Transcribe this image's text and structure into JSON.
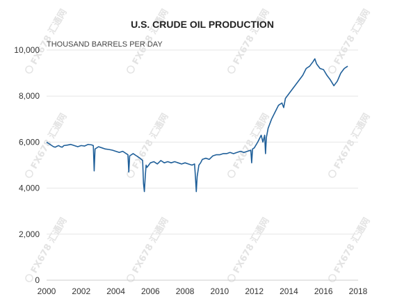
{
  "watermark": {
    "text": "FX678 汇通网"
  },
  "chart_data": {
    "type": "line",
    "title": "U.S. CRUDE OIL PRODUCTION",
    "ylabel": "THOUSAND BARRELS PER DAY",
    "xlabel": "",
    "xlim": [
      2000,
      2018
    ],
    "ylim": [
      0,
      10000
    ],
    "x_ticks": [
      2000,
      2002,
      2004,
      2006,
      2008,
      2010,
      2012,
      2014,
      2016,
      2018
    ],
    "x_tick_labels": [
      "2000",
      "2002",
      "2004",
      "2006",
      "2008",
      "2010",
      "2012",
      "2014",
      "2016",
      "2018"
    ],
    "y_ticks": [
      0,
      2000,
      4000,
      6000,
      8000,
      10000
    ],
    "y_tick_labels": [
      "0",
      "2,000",
      "4,000",
      "6,000",
      "8,000",
      "10,000"
    ],
    "grid": true,
    "legend": "none",
    "series": [
      {
        "color": "#1f5f99",
        "x": [
          2000.0,
          2000.1,
          2000.2,
          2000.3,
          2000.4,
          2000.5,
          2000.6,
          2000.7,
          2000.8,
          2000.9,
          2001.0,
          2001.2,
          2001.4,
          2001.6,
          2001.8,
          2002.0,
          2002.2,
          2002.4,
          2002.6,
          2002.7,
          2002.75,
          2002.8,
          2003.0,
          2003.2,
          2003.4,
          2003.6,
          2003.8,
          2004.0,
          2004.2,
          2004.4,
          2004.6,
          2004.7,
          2004.75,
          2004.8,
          2005.0,
          2005.2,
          2005.4,
          2005.55,
          2005.6,
          2005.65,
          2005.7,
          2005.75,
          2005.8,
          2005.9,
          2006.0,
          2006.2,
          2006.4,
          2006.6,
          2006.8,
          2007.0,
          2007.2,
          2007.4,
          2007.6,
          2007.8,
          2008.0,
          2008.2,
          2008.4,
          2008.55,
          2008.6,
          2008.65,
          2008.7,
          2008.8,
          2008.9,
          2009.0,
          2009.2,
          2009.4,
          2009.6,
          2009.8,
          2010.0,
          2010.2,
          2010.4,
          2010.6,
          2010.8,
          2011.0,
          2011.2,
          2011.4,
          2011.6,
          2011.8,
          2011.85,
          2011.9,
          2012.0,
          2012.2,
          2012.4,
          2012.5,
          2012.6,
          2012.65,
          2012.7,
          2012.8,
          2013.0,
          2013.2,
          2013.4,
          2013.6,
          2013.7,
          2013.8,
          2014.0,
          2014.2,
          2014.4,
          2014.6,
          2014.8,
          2015.0,
          2015.2,
          2015.4,
          2015.5,
          2015.6,
          2015.8,
          2016.0,
          2016.2,
          2016.4,
          2016.6,
          2016.8,
          2017.0,
          2017.2,
          2017.4
        ],
        "y": [
          6000,
          5950,
          5900,
          5850,
          5800,
          5780,
          5820,
          5850,
          5800,
          5780,
          5850,
          5870,
          5900,
          5850,
          5800,
          5850,
          5830,
          5900,
          5880,
          5850,
          4750,
          5700,
          5800,
          5750,
          5700,
          5680,
          5650,
          5600,
          5550,
          5600,
          5500,
          5450,
          4700,
          5400,
          5500,
          5400,
          5300,
          5200,
          4200,
          3850,
          4500,
          5000,
          4900,
          5000,
          5100,
          5150,
          5050,
          5200,
          5100,
          5150,
          5100,
          5150,
          5100,
          5050,
          5100,
          5050,
          5000,
          5050,
          4500,
          3850,
          4500,
          5000,
          5100,
          5250,
          5300,
          5250,
          5400,
          5450,
          5450,
          5500,
          5500,
          5550,
          5500,
          5550,
          5600,
          5550,
          5600,
          5650,
          5100,
          5700,
          5750,
          6000,
          6300,
          6000,
          6300,
          5500,
          6200,
          6600,
          7000,
          7300,
          7600,
          7700,
          7500,
          7900,
          8100,
          8300,
          8500,
          8700,
          8900,
          9200,
          9300,
          9500,
          9620,
          9400,
          9200,
          9150,
          8900,
          8700,
          8450,
          8650,
          9000,
          9200,
          9300
        ]
      }
    ]
  }
}
